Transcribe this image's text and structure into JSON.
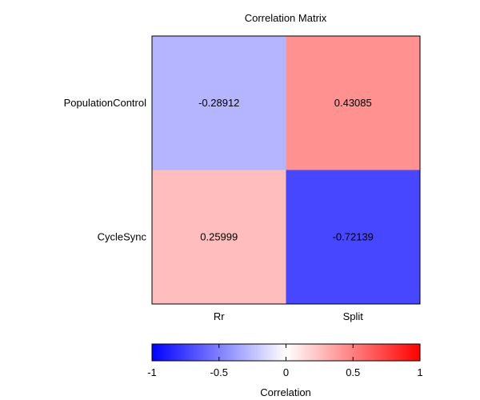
{
  "chart_data": {
    "type": "heatmap",
    "title": "Correlation Matrix",
    "x_categories": [
      "Rr",
      "Split"
    ],
    "y_categories": [
      "PopulationControl",
      "CycleSync"
    ],
    "values": [
      [
        -0.28912,
        0.43085
      ],
      [
        0.25999,
        -0.72139
      ]
    ],
    "cell_labels": [
      [
        "-0.28912",
        "0.43085"
      ],
      [
        "0.25999",
        "-0.72139"
      ]
    ],
    "colorbar": {
      "label": "Correlation",
      "range": [
        -1,
        1
      ],
      "ticks": [
        -1,
        -0.5,
        0,
        0.5,
        1
      ],
      "tick_labels": [
        "-1",
        "-0.5",
        "0",
        "0.5",
        "1"
      ],
      "colors": {
        "negative": "#0000ff",
        "neutral": "#ffffff",
        "positive": "#ff0000"
      }
    }
  }
}
